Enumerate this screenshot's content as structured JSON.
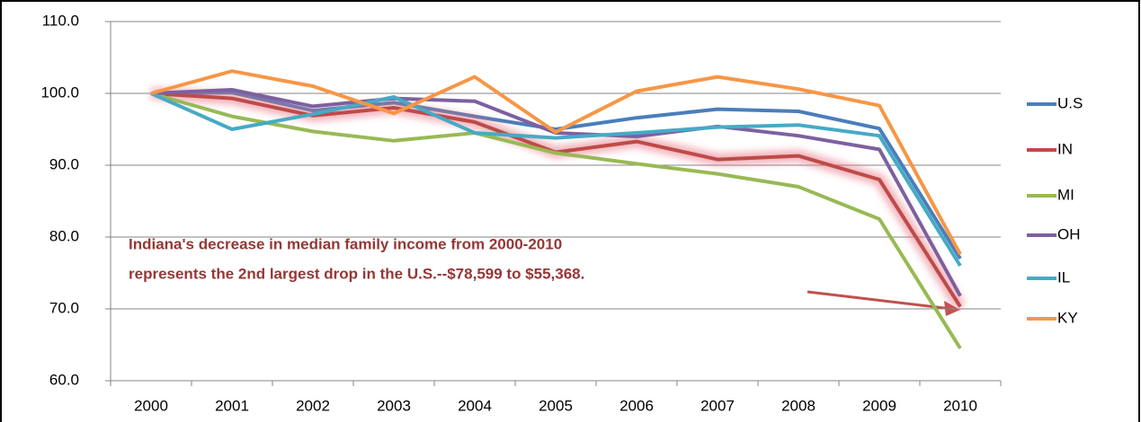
{
  "chart_data": {
    "type": "line",
    "categories": [
      "2000",
      "2001",
      "2002",
      "2003",
      "2004",
      "2005",
      "2006",
      "2007",
      "2008",
      "2009",
      "2010"
    ],
    "series": [
      {
        "name": "U.S",
        "color": "#4a7ebb",
        "values": [
          100,
          100.1,
          97.6,
          98.7,
          96.8,
          95.0,
          96.6,
          97.8,
          97.5,
          95.1,
          77.0
        ]
      },
      {
        "name": "IN",
        "color": "#be4b48",
        "values": [
          100,
          99.3,
          96.9,
          98.0,
          96.0,
          91.8,
          93.3,
          90.8,
          91.3,
          88.0,
          70.3
        ]
      },
      {
        "name": "MI",
        "color": "#98b954",
        "values": [
          100,
          96.8,
          94.7,
          93.4,
          94.5,
          91.7,
          90.2,
          88.8,
          87.0,
          82.5,
          64.5
        ]
      },
      {
        "name": "OH",
        "color": "#7d60a0",
        "values": [
          100,
          100.5,
          98.2,
          99.3,
          98.9,
          94.5,
          94.0,
          95.4,
          94.1,
          92.2,
          71.8
        ]
      },
      {
        "name": "IL",
        "color": "#46aac5",
        "values": [
          100,
          95.0,
          97.1,
          99.5,
          94.5,
          93.8,
          94.5,
          95.3,
          95.6,
          94.1,
          76.0
        ]
      },
      {
        "name": "KY",
        "color": "#f79646",
        "values": [
          100,
          103.1,
          101.0,
          97.2,
          102.3,
          94.6,
          100.3,
          102.3,
          100.6,
          98.3,
          77.6
        ]
      }
    ],
    "ylim": [
      60,
      110
    ],
    "yticks": [
      {
        "value": 60,
        "label": "60.0"
      },
      {
        "value": 70,
        "label": "70.0"
      },
      {
        "value": 80,
        "label": "80.0"
      },
      {
        "value": 90,
        "label": "90.0"
      },
      {
        "value": 100,
        "label": "100.0"
      },
      {
        "value": 110,
        "label": "110.0"
      }
    ],
    "grid": true,
    "legend": "right",
    "annotation": [
      "Indiana's decrease in median family income from 2000-2010",
      "represents the 2nd largest drop in the U.S.--$78,599 to $55,368."
    ],
    "annotation_color": "#953735"
  }
}
